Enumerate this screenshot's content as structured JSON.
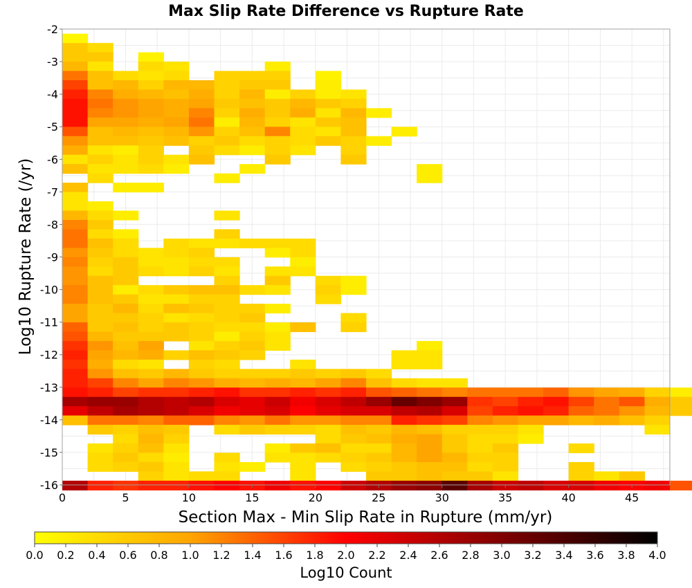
{
  "chart_data": {
    "type": "heatmap",
    "title": "Max Slip Rate Difference vs Rupture Rate",
    "xlabel": "Section Max - Min Slip Rate in Rupture (mm/yr)",
    "ylabel": "Log10 Rupture Rate (/yr)",
    "xlim": [
      0,
      48
    ],
    "ylim": [
      -16,
      -2
    ],
    "x_ticks": [
      0,
      5,
      10,
      15,
      20,
      25,
      30,
      35,
      40,
      45
    ],
    "y_ticks": [
      -2,
      -3,
      -4,
      -5,
      -6,
      -7,
      -8,
      -9,
      -10,
      -11,
      -12,
      -13,
      -14,
      -15,
      -16
    ],
    "x_bin_width": 2,
    "y_bin_height": 0.286,
    "grid": true,
    "colorbar": {
      "label": "Log10 Count",
      "range": [
        0,
        4
      ],
      "ticks": [
        "0.0",
        "0.2",
        "0.4",
        "0.6",
        "0.8",
        "1.0",
        "1.2",
        "1.4",
        "1.6",
        "1.8",
        "2.0",
        "2.2",
        "2.4",
        "2.6",
        "2.8",
        "3.0",
        "3.2",
        "3.4",
        "3.6",
        "3.8",
        "4.0"
      ],
      "colors": [
        "#ffff00",
        "#ffa500",
        "#ff0000",
        "#800000",
        "#000000"
      ]
    },
    "rows": [
      {
        "y_start": -2.142,
        "v": [
          0.1
        ]
      },
      {
        "y_start": -2.428,
        "v": [
          0.6,
          0.4
        ]
      },
      {
        "y_start": -2.714,
        "v": [
          0.6,
          0.6,
          null,
          0.15
        ]
      },
      {
        "y_start": -3.0,
        "v": [
          0.8,
          0.3,
          null,
          0.4,
          0.3,
          null,
          null,
          null,
          0.2
        ]
      },
      {
        "y_start": -3.286,
        "v": [
          1.3,
          0.7,
          0.4,
          0.3,
          0.4,
          null,
          0.5,
          0.5,
          0.5,
          null,
          0.15
        ]
      },
      {
        "y_start": -3.572,
        "v": [
          1.6,
          0.7,
          0.8,
          0.5,
          0.8,
          0.8,
          0.5,
          0.6,
          0.6,
          null,
          0.2
        ]
      },
      {
        "y_start": -3.858,
        "v": [
          1.8,
          1.2,
          0.9,
          0.8,
          0.7,
          0.9,
          0.5,
          0.8,
          0.2,
          0.5,
          0.2,
          0.3
        ]
      },
      {
        "y_start": -4.144,
        "v": [
          1.9,
          1.3,
          1.1,
          1.0,
          0.9,
          1.0,
          0.6,
          0.7,
          0.6,
          0.8,
          0.6,
          0.5
        ]
      },
      {
        "y_start": -4.43,
        "v": [
          1.9,
          1.2,
          1.1,
          1.0,
          0.9,
          1.2,
          0.5,
          0.9,
          0.6,
          0.9,
          0.3,
          0.8,
          0.2
        ]
      },
      {
        "y_start": -4.716,
        "v": [
          1.9,
          1.0,
          1.0,
          0.9,
          1.0,
          1.3,
          0.2,
          0.8,
          0.5,
          0.3,
          0.6,
          0.7
        ]
      },
      {
        "y_start": -5.002,
        "v": [
          1.5,
          0.7,
          0.8,
          0.7,
          0.8,
          1.1,
          0.5,
          0.7,
          1.2,
          0.4,
          0.3,
          0.7,
          null,
          0.2
        ]
      },
      {
        "y_start": -5.288,
        "v": [
          1.1,
          0.7,
          0.7,
          0.6,
          0.7,
          0.5,
          0.6,
          0.4,
          0.5,
          0.4,
          0.6,
          0.5,
          0.2
        ]
      },
      {
        "y_start": -5.574,
        "v": [
          0.9,
          0.3,
          0.2,
          0.5,
          null,
          0.6,
          0.4,
          0.2,
          0.5,
          0.3,
          null,
          0.5
        ]
      },
      {
        "y_start": -5.86,
        "v": [
          0.3,
          0.5,
          0.3,
          0.5,
          0.3,
          0.7,
          null,
          null,
          0.6,
          null,
          null,
          0.6
        ]
      },
      {
        "y_start": -6.146,
        "v": [
          0.7,
          0.3,
          0.3,
          0.4,
          0.2,
          null,
          null,
          0.2,
          null,
          null,
          null,
          null,
          null,
          null,
          0.2
        ]
      },
      {
        "y_start": -6.432,
        "v": [
          null,
          0.4,
          null,
          null,
          null,
          null,
          0.2,
          null,
          null,
          null,
          null,
          null,
          null,
          null,
          0.2
        ]
      },
      {
        "y_start": -6.718,
        "v": [
          0.7,
          null,
          0.2,
          0.2
        ]
      },
      {
        "y_start": -7.004,
        "v": [
          0.3
        ]
      },
      {
        "y_start": -7.29,
        "v": [
          0.3,
          0.2
        ]
      },
      {
        "y_start": -7.576,
        "v": [
          0.8,
          0.4,
          0.2,
          null,
          null,
          null,
          0.3
        ]
      },
      {
        "y_start": -7.862,
        "v": [
          1.2,
          0.6
        ]
      },
      {
        "y_start": -8.148,
        "v": [
          1.3,
          0.4,
          0.2,
          null,
          null,
          null,
          0.5
        ]
      },
      {
        "y_start": -8.434,
        "v": [
          1.3,
          0.7,
          0.4,
          null,
          0.4,
          0.3,
          0.3,
          0.4,
          0.4,
          0.4
        ]
      },
      {
        "y_start": -8.72,
        "v": [
          1.1,
          0.6,
          0.4,
          0.3,
          0.4,
          0.5,
          null,
          null,
          0.2,
          0.4
        ]
      },
      {
        "y_start": -9.006,
        "v": [
          1.2,
          0.5,
          0.6,
          0.3,
          0.3,
          0.4,
          0.4,
          null,
          null,
          0.2
        ]
      },
      {
        "y_start": -9.292,
        "v": [
          1.1,
          0.4,
          0.6,
          0.4,
          0.3,
          0.5,
          0.3,
          null,
          0.3,
          0.3
        ]
      },
      {
        "y_start": -9.578,
        "v": [
          1.1,
          0.7,
          0.6,
          null,
          null,
          null,
          0.5,
          null,
          0.6,
          null,
          0.4,
          0.2
        ]
      },
      {
        "y_start": -9.864,
        "v": [
          1.2,
          0.7,
          0.2,
          0.4,
          0.6,
          0.7,
          0.7,
          0.4,
          0.3,
          null,
          0.5,
          0.2
        ]
      },
      {
        "y_start": -10.15,
        "v": [
          1.2,
          0.7,
          0.6,
          0.3,
          0.3,
          0.5,
          0.5,
          null,
          null,
          null,
          0.4
        ]
      },
      {
        "y_start": -10.436,
        "v": [
          1.0,
          0.6,
          0.8,
          0.4,
          0.7,
          0.6,
          0.5,
          0.5,
          0.2
        ]
      },
      {
        "y_start": -10.722,
        "v": [
          1.0,
          0.6,
          0.6,
          0.5,
          0.3,
          0.4,
          0.5,
          0.6,
          null,
          null,
          null,
          0.4
        ]
      },
      {
        "y_start": -11.008,
        "v": [
          1.4,
          0.6,
          0.7,
          0.5,
          0.6,
          0.5,
          0.4,
          0.4,
          0.2,
          0.7,
          null,
          0.5
        ]
      },
      {
        "y_start": -11.294,
        "v": [
          1.5,
          0.8,
          0.6,
          0.6,
          0.6,
          0.5,
          0.2,
          0.5,
          0.3
        ]
      },
      {
        "y_start": -11.58,
        "v": [
          1.7,
          1.1,
          0.7,
          1.0,
          null,
          0.3,
          0.5,
          0.6,
          0.3,
          null,
          null,
          null,
          null,
          null,
          0.2
        ]
      },
      {
        "y_start": -11.866,
        "v": [
          1.8,
          1.0,
          0.8,
          0.9,
          0.5,
          0.7,
          0.6,
          0.5,
          null,
          null,
          null,
          null,
          null,
          0.3,
          0.3
        ]
      },
      {
        "y_start": -12.152,
        "v": [
          1.7,
          0.9,
          0.4,
          0.3,
          null,
          0.5,
          0.4,
          null,
          null,
          0.3,
          null,
          null,
          null,
          0.3,
          0.3
        ]
      },
      {
        "y_start": -12.438,
        "v": [
          1.8,
          1.1,
          0.7,
          0.6,
          0.8,
          0.6,
          0.5,
          0.5,
          0.5,
          0.6,
          0.5,
          0.6,
          0.4
        ]
      },
      {
        "y_start": -12.724,
        "v": [
          1.8,
          1.6,
          1.2,
          1.0,
          1.2,
          1.1,
          0.9,
          0.8,
          0.9,
          0.8,
          1.0,
          1.2,
          0.7,
          0.4,
          0.3,
          0.3
        ]
      },
      {
        "y_start": -13.01,
        "v": [
          1.9,
          1.8,
          1.6,
          1.7,
          1.7,
          1.8,
          1.9,
          1.7,
          1.7,
          1.8,
          1.7,
          1.8,
          1.5,
          1.4,
          1.3,
          1.2,
          1.3,
          1.3,
          1.3,
          1.4,
          1.1,
          1.0,
          0.9,
          0.5,
          0.2
        ]
      },
      {
        "y_start": -13.296,
        "v": [
          2.7,
          2.8,
          2.8,
          2.6,
          2.5,
          2.6,
          2.3,
          2.2,
          2.4,
          2.1,
          2.3,
          2.5,
          2.8,
          3.2,
          3.0,
          2.8,
          1.7,
          1.6,
          1.8,
          1.9,
          1.6,
          1.3,
          1.5,
          0.9,
          0.6
        ]
      },
      {
        "y_start": -13.582,
        "v": [
          2.2,
          2.5,
          2.7,
          2.6,
          2.5,
          2.3,
          2.1,
          2.2,
          2.3,
          2.0,
          2.2,
          2.3,
          2.3,
          2.5,
          2.6,
          2.3,
          1.6,
          1.8,
          1.9,
          1.8,
          1.4,
          1.3,
          1.1,
          0.8,
          0.6
        ]
      },
      {
        "y_start": -13.868,
        "v": [
          0.7,
          1.3,
          1.3,
          1.2,
          1.4,
          1.4,
          1.2,
          1.1,
          1.3,
          1.1,
          1.1,
          1.2,
          1.2,
          1.8,
          1.7,
          1.6,
          1.2,
          1.1,
          1.0,
          1.0,
          0.8,
          0.9,
          0.7,
          0.5
        ]
      },
      {
        "y_start": -14.154,
        "v": [
          null,
          0.6,
          0.5,
          0.7,
          0.6,
          null,
          0.4,
          0.6,
          0.5,
          0.5,
          0.4,
          0.7,
          0.6,
          0.8,
          0.7,
          0.5,
          0.5,
          0.5,
          0.3,
          null,
          null,
          null,
          null,
          0.3
        ]
      },
      {
        "y_start": -14.44,
        "v": [
          null,
          null,
          0.4,
          0.8,
          0.5,
          null,
          null,
          null,
          null,
          null,
          0.4,
          0.6,
          0.7,
          0.9,
          1.0,
          0.6,
          0.4,
          0.4,
          0.2
        ]
      },
      {
        "y_start": -14.726,
        "v": [
          null,
          0.3,
          0.5,
          0.7,
          0.3,
          null,
          null,
          null,
          0.2,
          0.6,
          0.7,
          0.4,
          0.4,
          0.8,
          1.0,
          0.6,
          0.4,
          0.6,
          null,
          null,
          0.4
        ]
      },
      {
        "y_start": -15.012,
        "v": [
          null,
          0.4,
          0.6,
          0.4,
          0.2,
          null,
          0.4,
          null,
          0.3,
          0.3,
          0.4,
          0.5,
          0.6,
          0.8,
          1.0,
          0.8,
          0.5,
          0.5
        ]
      },
      {
        "y_start": -15.298,
        "v": [
          null,
          0.4,
          0.5,
          0.6,
          0.3,
          null,
          0.3,
          0.2,
          null,
          0.3,
          null,
          0.4,
          0.5,
          0.6,
          0.7,
          0.7,
          0.4,
          0.5,
          null,
          null,
          0.5
        ]
      },
      {
        "y_start": -15.584,
        "v": [
          null,
          null,
          null,
          0.5,
          0.3,
          0.4,
          0.4,
          null,
          null,
          0.3,
          null,
          null,
          0.6,
          0.6,
          0.7,
          0.6,
          0.6,
          0.3,
          null,
          null,
          0.5,
          0.3,
          0.6
        ]
      },
      {
        "y_start": -15.87,
        "v": [
          2.6,
          1.8,
          1.7,
          1.8,
          1.8,
          1.9,
          2.0,
          1.9,
          2.1,
          1.9,
          2.0,
          2.4,
          2.6,
          2.8,
          2.9,
          3.3,
          2.7,
          2.4,
          2.5,
          2.3,
          2.3,
          2.1,
          2.0,
          2.1,
          1.5
        ]
      }
    ]
  }
}
